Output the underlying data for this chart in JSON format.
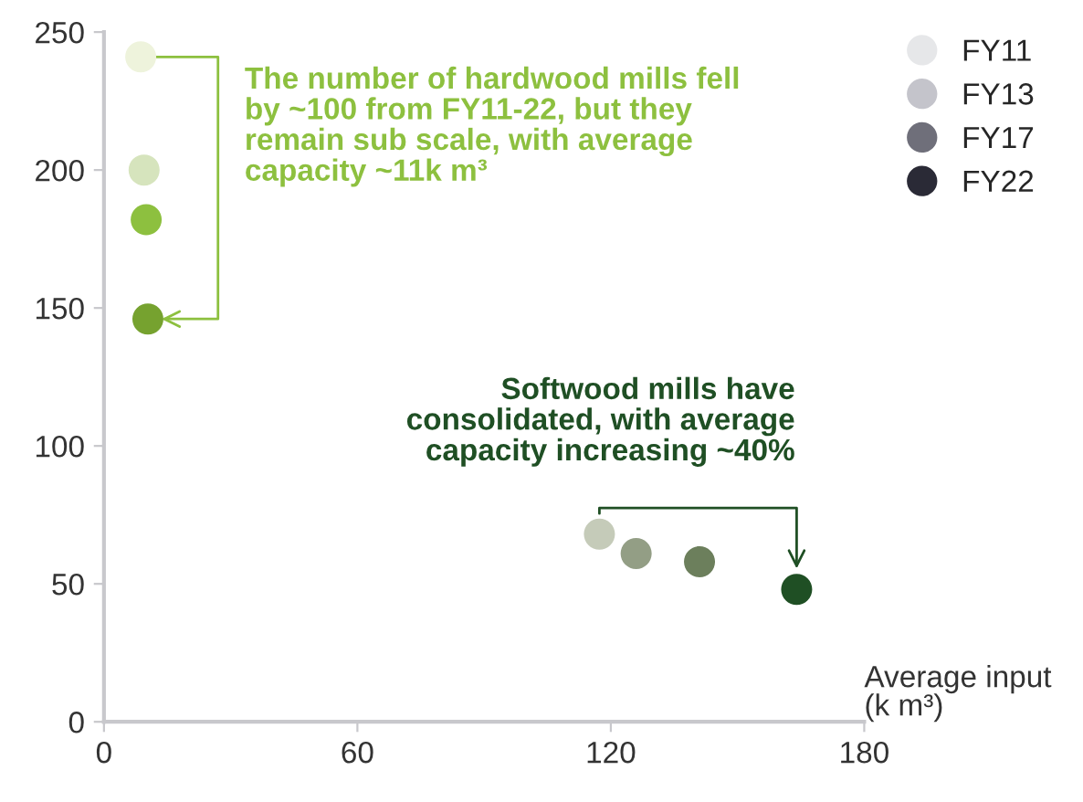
{
  "chart_data": {
    "type": "scatter",
    "xlabel": "Average input (k m³)",
    "xlim": [
      0,
      180
    ],
    "xticks": [
      0,
      60,
      120,
      180
    ],
    "ylim": [
      0,
      250
    ],
    "yticks": [
      0,
      50,
      100,
      150,
      200,
      250
    ],
    "grid": false,
    "legend": "top right",
    "marker": "circle",
    "series": [
      {
        "name": "FY11",
        "color": "#e6e7e9",
        "x": [
          8.7,
          117.3
        ],
        "values": [
          241,
          68
        ],
        "colors": [
          "#eef3dc",
          "#c5cbb9"
        ]
      },
      {
        "name": "FY13",
        "color": "#c4c4cb",
        "x": [
          9.5,
          126
        ],
        "values": [
          200,
          61
        ],
        "colors": [
          "#d6e4bd",
          "#939e85"
        ]
      },
      {
        "name": "FY17",
        "color": "#6f6f7a",
        "x": [
          10,
          141
        ],
        "values": [
          182,
          58
        ],
        "colors": [
          "#8dc03f",
          "#6c7f5c"
        ]
      },
      {
        "name": "FY22",
        "color": "#2a2a36",
        "x": [
          10.4,
          164
        ],
        "values": [
          146,
          48
        ],
        "colors": [
          "#76a22f",
          "#1f4f24"
        ]
      }
    ],
    "annotations": [
      "The number of hardwood mills fell\nby ~100 from FY11-22, but they\nremain sub scale, with average\ncapacity ~11k m³",
      "Softwood mills have\nconsolidated, with average\ncapacity increasing ~40%"
    ]
  }
}
